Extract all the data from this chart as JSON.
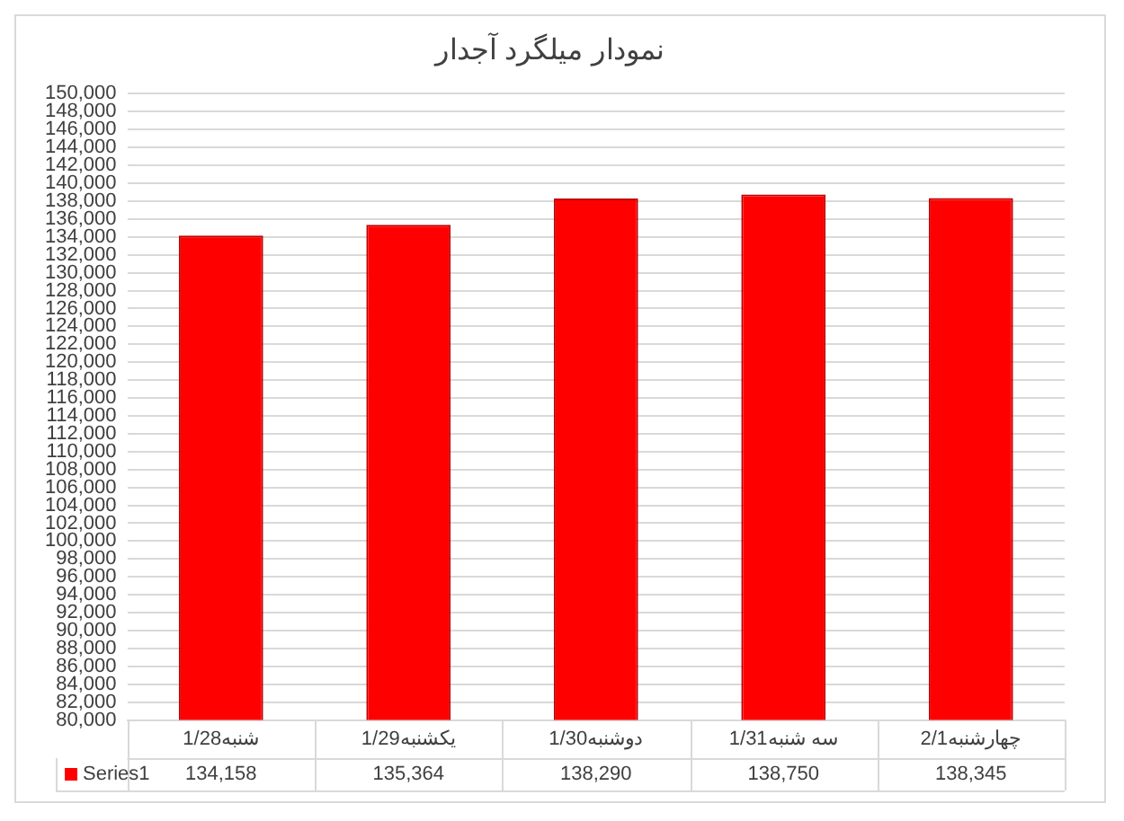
{
  "chart_data": {
    "type": "bar",
    "title": "نمودار میلگرد آجدار",
    "categories": [
      "شنبه1/28",
      "یکشنبه1/29",
      "دوشنبه1/30",
      "سه شنبه1/31",
      "چهارشنبه2/1"
    ],
    "series": [
      {
        "name": "Series1",
        "color": "#ff0000",
        "values": [
          134158,
          135364,
          138290,
          138750,
          138345
        ],
        "value_labels": [
          "134,158",
          "135,364",
          "138,290",
          "138,750",
          "138,345"
        ]
      }
    ],
    "ylim": [
      80000,
      150000
    ],
    "yticks": [
      {
        "value": 80000,
        "label": "80,000"
      },
      {
        "value": 82000,
        "label": "82,000"
      },
      {
        "value": 84000,
        "label": "84,000"
      },
      {
        "value": 86000,
        "label": "86,000"
      },
      {
        "value": 88000,
        "label": "88,000"
      },
      {
        "value": 90000,
        "label": "90,000"
      },
      {
        "value": 92000,
        "label": "92,000"
      },
      {
        "value": 94000,
        "label": "94,000"
      },
      {
        "value": 96000,
        "label": "96,000"
      },
      {
        "value": 98000,
        "label": "98,000"
      },
      {
        "value": 100000,
        "label": "100,000"
      },
      {
        "value": 102000,
        "label": "102,000"
      },
      {
        "value": 104000,
        "label": "104,000"
      },
      {
        "value": 106000,
        "label": "106,000"
      },
      {
        "value": 108000,
        "label": "108,000"
      },
      {
        "value": 110000,
        "label": "110,000"
      },
      {
        "value": 112000,
        "label": "112,000"
      },
      {
        "value": 114000,
        "label": "114,000"
      },
      {
        "value": 116000,
        "label": "116,000"
      },
      {
        "value": 118000,
        "label": "118,000"
      },
      {
        "value": 120000,
        "label": "120,000"
      },
      {
        "value": 122000,
        "label": "122,000"
      },
      {
        "value": 124000,
        "label": "124,000"
      },
      {
        "value": 126000,
        "label": "126,000"
      },
      {
        "value": 128000,
        "label": "128,000"
      },
      {
        "value": 130000,
        "label": "130,000"
      },
      {
        "value": 132000,
        "label": "132,000"
      },
      {
        "value": 134000,
        "label": "134,000"
      },
      {
        "value": 136000,
        "label": "136,000"
      },
      {
        "value": 138000,
        "label": "138,000"
      },
      {
        "value": 140000,
        "label": "140,000"
      },
      {
        "value": 142000,
        "label": "142,000"
      },
      {
        "value": 144000,
        "label": "144,000"
      },
      {
        "value": 146000,
        "label": "146,000"
      },
      {
        "value": 148000,
        "label": "148,000"
      },
      {
        "value": 150000,
        "label": "150,000"
      }
    ],
    "grid": "y",
    "legend": "bottom"
  }
}
